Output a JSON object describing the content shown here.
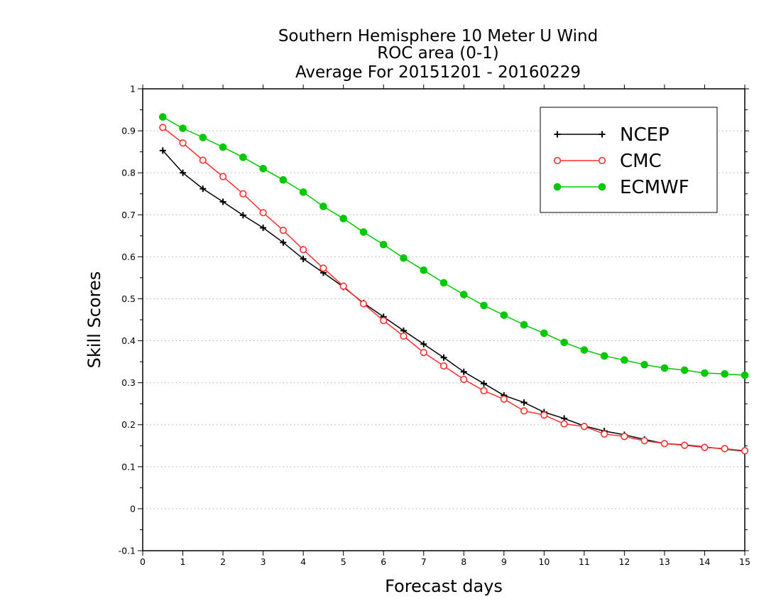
{
  "chart_data": {
    "type": "line",
    "title": [
      "Southern Hemisphere 10 Meter U Wind",
      "ROC area (0-1)",
      "Average For 20151201 - 20160229"
    ],
    "xlabel": "Forecast days",
    "ylabel": "Skill Scores",
    "xlim": [
      0,
      15
    ],
    "ylim": [
      -0.1,
      1
    ],
    "xticks": [
      0,
      1,
      2,
      3,
      4,
      5,
      6,
      7,
      8,
      9,
      10,
      11,
      12,
      13,
      14,
      15
    ],
    "yticks": [
      -0.1,
      0,
      0.1,
      0.2,
      0.3,
      0.4,
      0.5,
      0.6,
      0.7,
      0.8,
      0.9,
      1
    ],
    "ytick_labels": [
      "-0.1",
      "0",
      "0.1",
      "0.2",
      "0.3",
      "0.4",
      "0.5",
      "0.6",
      "0.7",
      "0.8",
      "0.9",
      "1"
    ],
    "grid": "horizontal dotted",
    "legend_position": "top-right",
    "x": [
      0.5,
      1,
      1.5,
      2,
      2.5,
      3,
      3.5,
      4,
      4.5,
      5,
      5.5,
      6,
      6.5,
      7,
      7.5,
      8,
      8.5,
      9,
      9.5,
      10,
      10.5,
      11,
      11.5,
      12,
      12.5,
      13,
      13.5,
      14,
      14.5,
      15
    ],
    "series": [
      {
        "name": "NCEP",
        "color": "#000000",
        "marker": "plus",
        "values": [
          0.853,
          0.8,
          0.762,
          0.731,
          0.699,
          0.669,
          0.634,
          0.595,
          0.562,
          0.528,
          0.49,
          0.457,
          0.424,
          0.392,
          0.36,
          0.326,
          0.298,
          0.27,
          0.253,
          0.23,
          0.215,
          0.197,
          0.185,
          0.176,
          0.165,
          0.155,
          0.152,
          0.147,
          0.142,
          0.137
        ]
      },
      {
        "name": "CMC",
        "color": "#ff3030",
        "marker": "open-circle",
        "values": [
          0.908,
          0.871,
          0.83,
          0.791,
          0.75,
          0.705,
          0.663,
          0.617,
          0.573,
          0.53,
          0.488,
          0.448,
          0.411,
          0.372,
          0.34,
          0.308,
          0.281,
          0.261,
          0.233,
          0.223,
          0.202,
          0.196,
          0.178,
          0.172,
          0.162,
          0.155,
          0.151,
          0.146,
          0.143,
          0.138
        ]
      },
      {
        "name": "ECMWF",
        "color": "#00c800",
        "marker": "filled-circle",
        "values": [
          0.933,
          0.906,
          0.884,
          0.861,
          0.837,
          0.81,
          0.783,
          0.754,
          0.72,
          0.691,
          0.659,
          0.629,
          0.597,
          0.568,
          0.538,
          0.51,
          0.484,
          0.461,
          0.438,
          0.418,
          0.396,
          0.378,
          0.364,
          0.354,
          0.343,
          0.335,
          0.33,
          0.323,
          0.321,
          0.318
        ]
      }
    ]
  }
}
